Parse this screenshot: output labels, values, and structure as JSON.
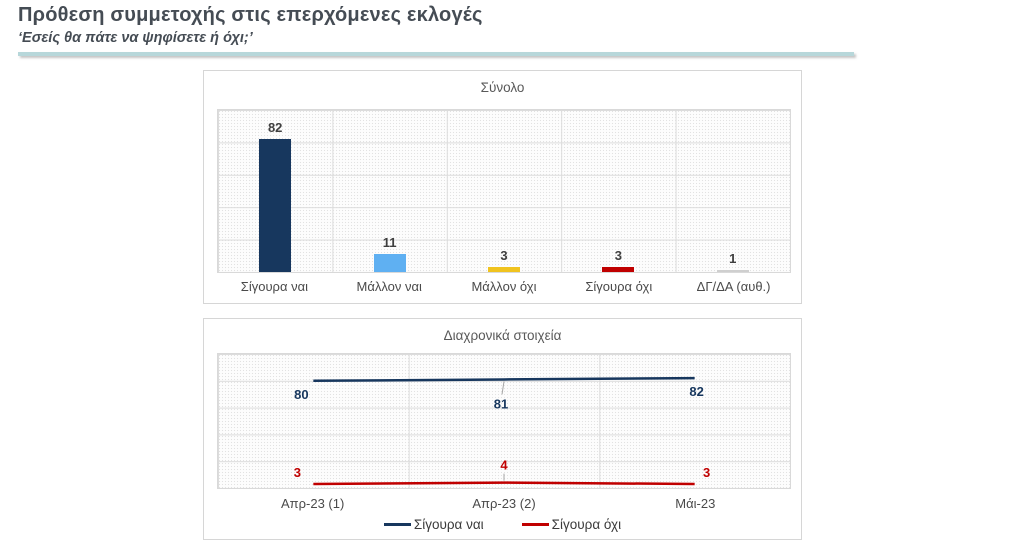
{
  "page": {
    "title": "Πρόθεση συμμετοχής στις επερχόμενες εκλογές",
    "subtitle": "‘Εσείς θα πάτε να ψηφίσετε ή όχι;’"
  },
  "colors": {
    "header_text": "#454c54",
    "divider_teal": "#b7d7da",
    "navy": "#17375E",
    "light_blue": "#5FB0F2",
    "gold": "#F0C31F",
    "red": "#C00000",
    "gray_bar": "#CFCFCF",
    "grid": "#dcdcdc",
    "label_gray": "#4a4a4a"
  },
  "chart_data": [
    {
      "type": "bar",
      "title": "Σύνολο",
      "categories": [
        "Σίγουρα ναι",
        "Μάλλον ναι",
        "Μάλλον όχι",
        "Σίγουρα όχι",
        "ΔΓ/ΔΑ (αυθ.)"
      ],
      "values": [
        82,
        11,
        3,
        3,
        1
      ],
      "bar_colors": [
        "#17375E",
        "#5FB0F2",
        "#F0C31F",
        "#C00000",
        "#CFCFCF"
      ],
      "xlabel": "",
      "ylabel": "",
      "ylim": [
        0,
        100
      ],
      "grid": true,
      "data_labels": true,
      "legend_position": "none"
    },
    {
      "type": "line",
      "title": "Διαχρονικά στοιχεία",
      "categories": [
        "Απρ-23 (1)",
        "Απρ-23 (2)",
        "Μάι-23"
      ],
      "series": [
        {
          "name": "Σίγουρα ναι",
          "values": [
            80,
            81,
            82
          ],
          "color": "#17375E",
          "label_position": "below"
        },
        {
          "name": "Σίγουρα όχι",
          "values": [
            3,
            4,
            3
          ],
          "color": "#C00000",
          "label_position": "above"
        }
      ],
      "xlabel": "",
      "ylabel": "",
      "ylim": [
        0,
        100
      ],
      "grid": true,
      "data_labels": true,
      "legend_position": "bottom"
    }
  ]
}
